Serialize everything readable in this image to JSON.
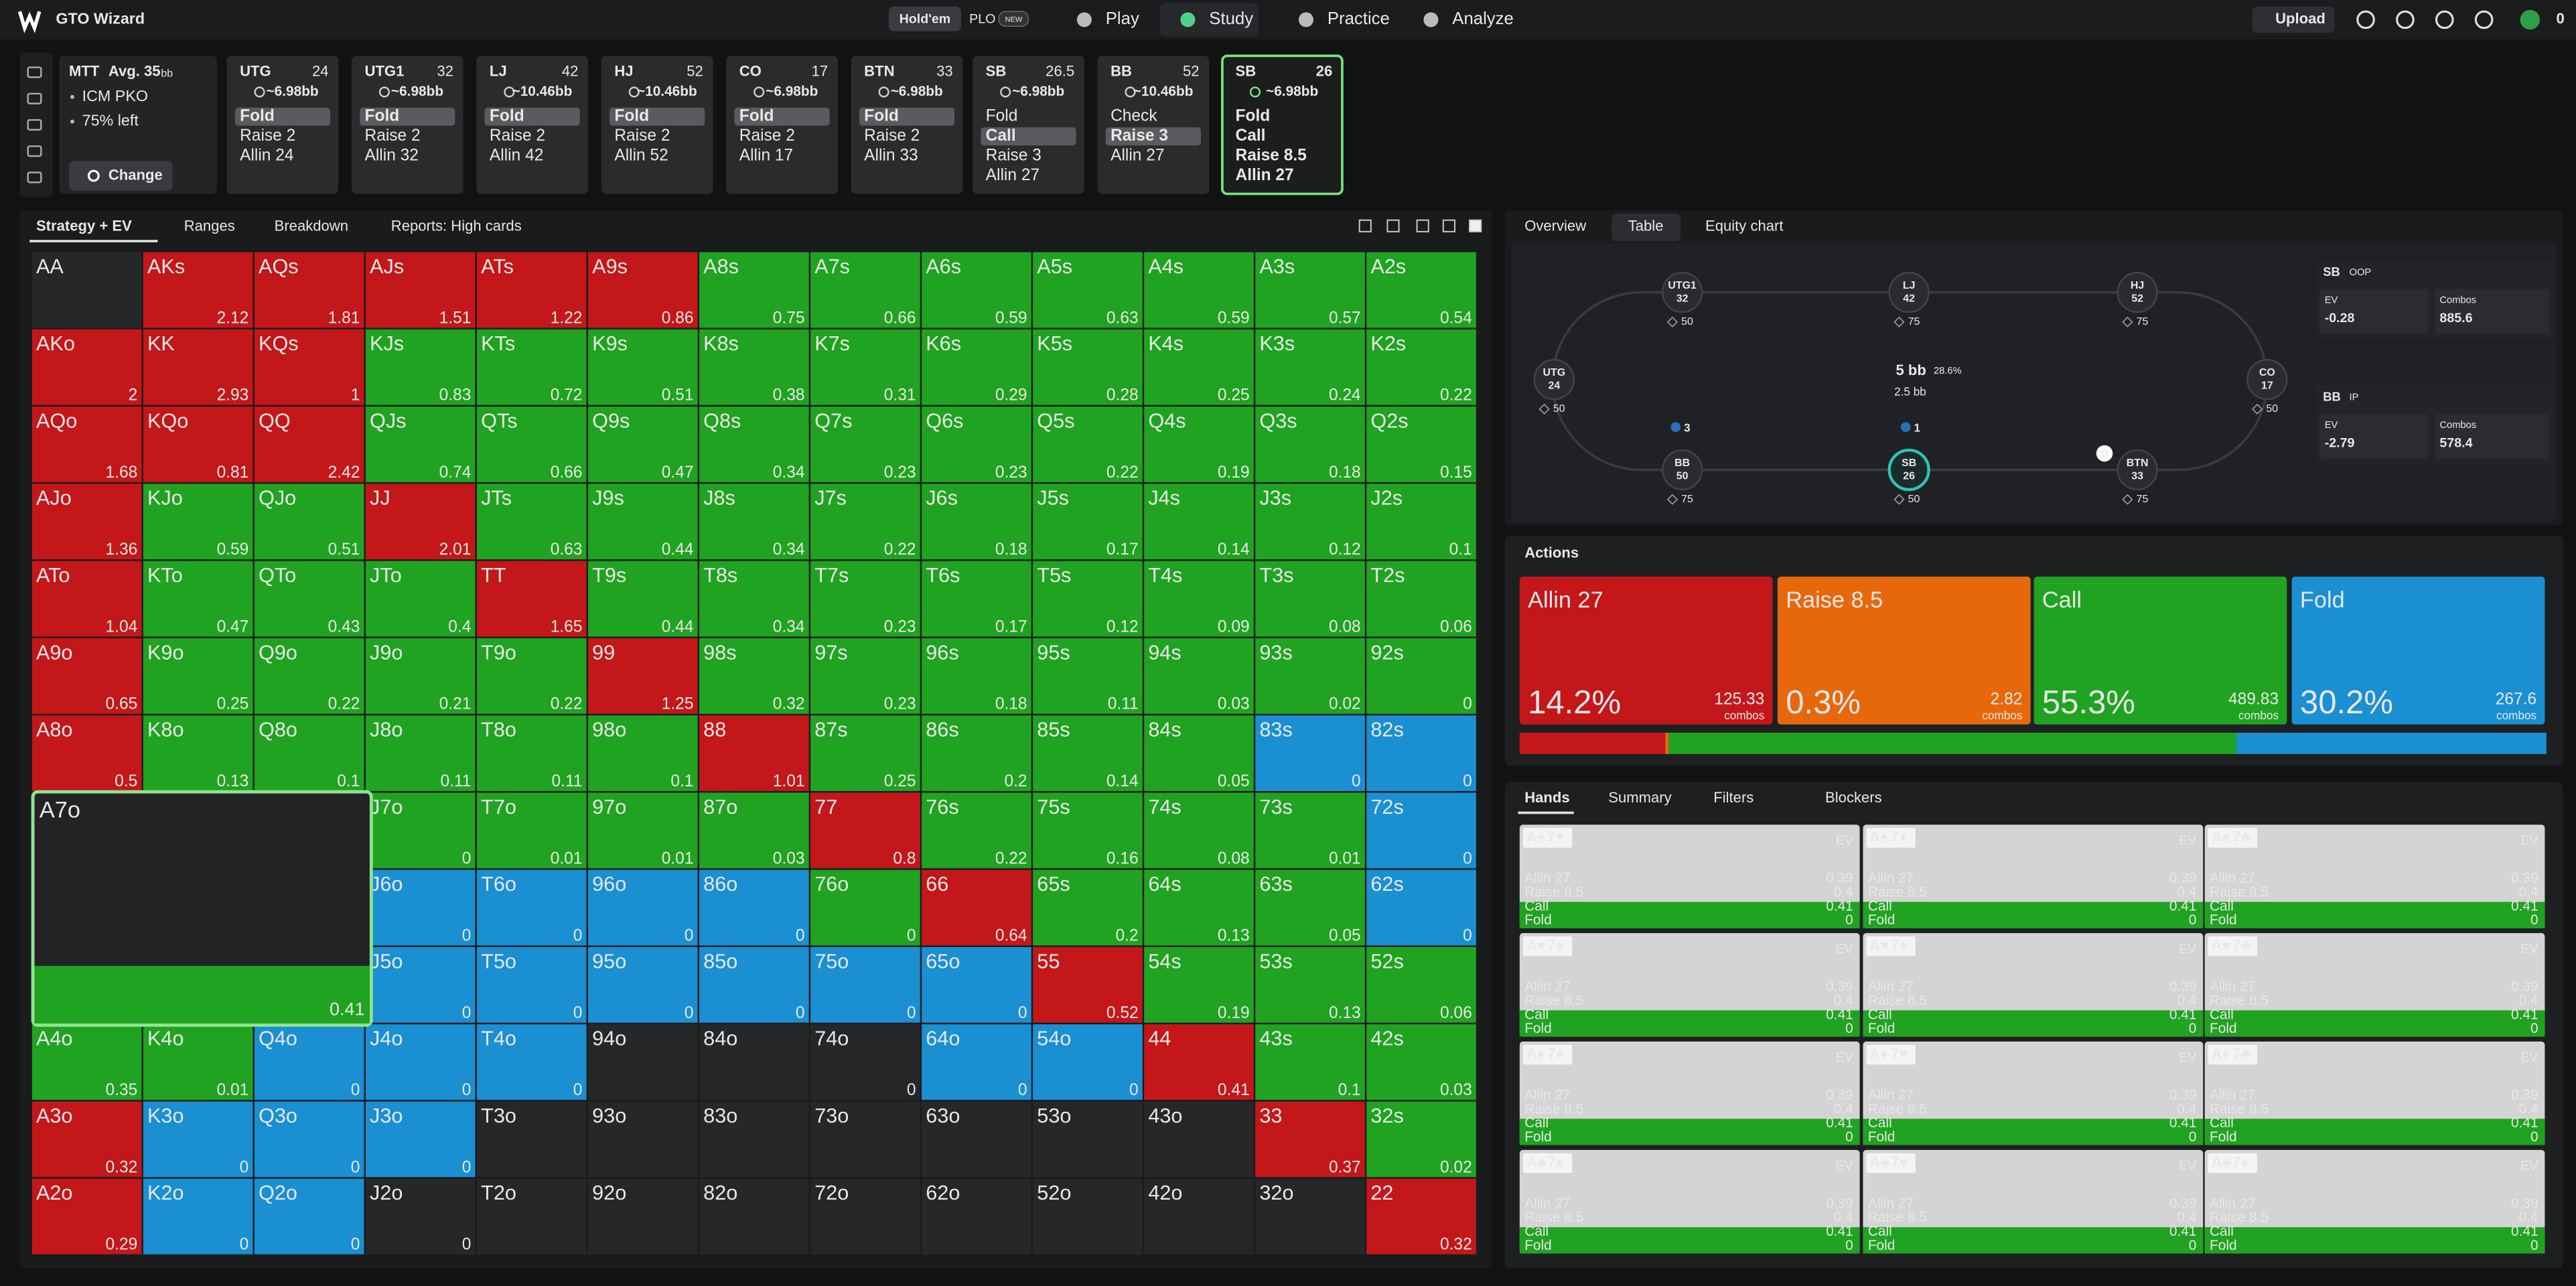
{
  "topbar": {
    "brand": "GTO Wizard",
    "modes": [
      "Hold'em",
      "PLO"
    ],
    "badge": "NEW",
    "nav": [
      "Play",
      "Study",
      "Practice",
      "Analyze"
    ],
    "upload": "Upload",
    "balance": "0"
  },
  "spot": {
    "format": "MTT",
    "avg": "Avg. 35",
    "avg_unit": "bb",
    "tags": [
      "ICM PKO",
      "75% left"
    ],
    "button": "Change"
  },
  "positions": [
    {
      "name": "UTG",
      "stack": 24,
      "pot": "~6.98bb",
      "actions": [
        "Fold",
        "Raise 2",
        "Allin 24"
      ],
      "selected": 0
    },
    {
      "name": "UTG1",
      "stack": 32,
      "pot": "~6.98bb",
      "actions": [
        "Fold",
        "Raise 2",
        "Allin 32"
      ],
      "selected": 0
    },
    {
      "name": "LJ",
      "stack": 42,
      "pot": "~10.46bb",
      "actions": [
        "Fold",
        "Raise 2",
        "Allin 42"
      ],
      "selected": 0
    },
    {
      "name": "HJ",
      "stack": 52,
      "pot": "~10.46bb",
      "actions": [
        "Fold",
        "Raise 2",
        "Allin 52"
      ],
      "selected": 0
    },
    {
      "name": "CO",
      "stack": 17,
      "pot": "~6.98bb",
      "actions": [
        "Fold",
        "Raise 2",
        "Allin 17"
      ],
      "selected": 0
    },
    {
      "name": "BTN",
      "stack": 33,
      "pot": "~6.98bb",
      "actions": [
        "Fold",
        "Raise 2",
        "Allin 33"
      ],
      "selected": 0
    },
    {
      "name": "SB",
      "stack": 26.5,
      "pot": "~6.98bb",
      "actions": [
        "Fold",
        "Call",
        "Raise 3",
        "Allin 27"
      ],
      "selected": 1
    },
    {
      "name": "BB",
      "stack": 52,
      "pot": "~10.46bb",
      "actions": [
        "Check",
        "Raise 3",
        "Allin 27"
      ],
      "selected": 1
    },
    {
      "name": "SB",
      "stack": 26,
      "pot": "~6.98bb",
      "actions": [
        "Fold",
        "Call",
        "Raise 8.5",
        "Allin 27"
      ],
      "selected": null,
      "active": true
    }
  ],
  "left_tabs": [
    "Strategy + EV",
    "Ranges",
    "Breakdown",
    "Reports: High cards"
  ],
  "right_tabs": [
    "Overview",
    "Table",
    "Equity chart"
  ],
  "grid": {
    "colors": {
      "A": "#c3171a",
      "R": "#e7680b",
      "C": "#20a320",
      "F": "#1a8fd2"
    },
    "rows": [
      {
        "hands": [
          "AA",
          "AKs",
          "AQs",
          "AJs",
          "ATs",
          "A9s",
          "A8s",
          "A7s",
          "A6s",
          "A5s",
          "A4s",
          "A3s",
          "A2s"
        ],
        "ev": [
          null,
          2.12,
          1.81,
          1.51,
          1.22,
          0.86,
          0.75,
          0.66,
          0.59,
          0.63,
          0.59,
          0.57,
          0.54
        ],
        "action": "NAAAAACCCCCCC"
      },
      {
        "hands": [
          "AKo",
          "KK",
          "KQs",
          "KJs",
          "KTs",
          "K9s",
          "K8s",
          "K7s",
          "K6s",
          "K5s",
          "K4s",
          "K3s",
          "K2s"
        ],
        "ev": [
          2,
          2.93,
          1,
          0.83,
          0.72,
          0.51,
          0.38,
          0.31,
          0.29,
          0.28,
          0.25,
          0.24,
          0.22
        ],
        "action": "AAACCCCCCCCCC"
      },
      {
        "hands": [
          "AQo",
          "KQo",
          "QQ",
          "QJs",
          "QTs",
          "Q9s",
          "Q8s",
          "Q7s",
          "Q6s",
          "Q5s",
          "Q4s",
          "Q3s",
          "Q2s"
        ],
        "ev": [
          1.68,
          0.81,
          2.42,
          0.74,
          0.66,
          0.47,
          0.34,
          0.23,
          0.23,
          0.22,
          0.19,
          0.18,
          0.15
        ],
        "action": "AAACCCCCCCCCC"
      },
      {
        "hands": [
          "AJo",
          "KJo",
          "QJo",
          "JJ",
          "JTs",
          "J9s",
          "J8s",
          "J7s",
          "J6s",
          "J5s",
          "J4s",
          "J3s",
          "J2s"
        ],
        "ev": [
          1.36,
          0.59,
          0.51,
          2.01,
          0.63,
          0.44,
          0.34,
          0.22,
          0.18,
          0.17,
          0.14,
          0.12,
          0.1
        ],
        "action": "ACCACCCCCCCCC"
      },
      {
        "hands": [
          "ATo",
          "KTo",
          "QTo",
          "JTo",
          "TT",
          "T9s",
          "T8s",
          "T7s",
          "T6s",
          "T5s",
          "T4s",
          "T3s",
          "T2s"
        ],
        "ev": [
          1.04,
          0.47,
          0.43,
          0.4,
          1.65,
          0.44,
          0.34,
          0.23,
          0.17,
          0.12,
          0.09,
          0.08,
          0.06
        ],
        "action": "ACCCACCCCCCCC"
      },
      {
        "hands": [
          "A9o",
          "K9o",
          "Q9o",
          "J9o",
          "T9o",
          "99",
          "98s",
          "97s",
          "96s",
          "95s",
          "94s",
          "93s",
          "92s"
        ],
        "ev": [
          0.65,
          0.25,
          0.22,
          0.21,
          0.22,
          1.25,
          0.32,
          0.23,
          0.18,
          0.11,
          0.03,
          0.02,
          0
        ],
        "action": "ACCCCACCCCCCC"
      },
      {
        "hands": [
          "A8o",
          "K8o",
          "Q8o",
          "J8o",
          "T8o",
          "98o",
          "88",
          "87s",
          "86s",
          "85s",
          "84s",
          "83s",
          "82s"
        ],
        "ev": [
          0.5,
          0.13,
          0.1,
          0.11,
          0.11,
          0.1,
          1.01,
          0.25,
          0.2,
          0.14,
          0.05,
          0,
          0
        ],
        "action": "ACCCCCACCCCFF"
      },
      {
        "hands": [
          null,
          null,
          null,
          "J7o",
          "T7o",
          "97o",
          "87o",
          "77",
          "76s",
          "75s",
          "74s",
          "73s",
          "72s"
        ],
        "ev": [
          null,
          null,
          null,
          0,
          0.01,
          0.01,
          0.03,
          0.8,
          0.22,
          0.16,
          0.08,
          0.01,
          0
        ],
        "action": "NNNCCCCACCCCF"
      },
      {
        "hands": [
          null,
          null,
          null,
          "J6o",
          "T6o",
          "96o",
          "86o",
          "76o",
          "66",
          "65s",
          "64s",
          "63s",
          "62s"
        ],
        "ev": [
          null,
          null,
          null,
          0,
          0,
          0,
          0,
          0,
          0.64,
          0.2,
          0.13,
          0.05,
          0
        ],
        "action": "NNNFFFFCACCCF"
      },
      {
        "hands": [
          null,
          null,
          null,
          "J5o",
          "T5o",
          "95o",
          "85o",
          "75o",
          "65o",
          "55",
          "54s",
          "53s",
          "52s"
        ],
        "ev": [
          null,
          null,
          null,
          0,
          0,
          0,
          0,
          0,
          0,
          0.52,
          0.19,
          0.13,
          0.06
        ],
        "action": "NNNFFFFFFACCC"
      },
      {
        "hands": [
          "A4o",
          "K4o",
          "Q4o",
          "J4o",
          "T4o",
          "94o",
          "84o",
          "74o",
          "64o",
          "54o",
          "44",
          "43s",
          "42s"
        ],
        "ev": [
          0.35,
          0.01,
          0,
          0,
          0,
          null,
          null,
          0,
          0,
          0,
          0.41,
          0.1,
          0.03
        ],
        "action": "CCFFFNNNFFACC"
      },
      {
        "hands": [
          "A3o",
          "K3o",
          "Q3o",
          "J3o",
          "T3o",
          "93o",
          "83o",
          "73o",
          "63o",
          "53o",
          "43o",
          "33",
          "32s"
        ],
        "ev": [
          0.32,
          0,
          0,
          0,
          null,
          null,
          null,
          null,
          null,
          null,
          null,
          0.37,
          0.02
        ],
        "action": "AFFFNNNNNNNAC"
      },
      {
        "hands": [
          "A2o",
          "K2o",
          "Q2o",
          "J2o",
          "T2o",
          "92o",
          "82o",
          "72o",
          "62o",
          "52o",
          "42o",
          "32o",
          "22"
        ],
        "ev": [
          0.29,
          0,
          0,
          0,
          null,
          null,
          null,
          null,
          null,
          null,
          null,
          null,
          0.32
        ],
        "action": "AFFNNNNNNNNNA"
      }
    ],
    "selected": {
      "hand": "A7o",
      "ev": 0.41
    }
  },
  "table": {
    "seats": [
      {
        "name": "UTG1",
        "stack": 32,
        "bet": 50
      },
      {
        "name": "LJ",
        "stack": 42,
        "bet": 75
      },
      {
        "name": "HJ",
        "stack": 52,
        "bet": 75
      },
      {
        "name": "UTG",
        "stack": 24,
        "bet": 50
      },
      {
        "name": "CO",
        "stack": 17,
        "bet": 50
      },
      {
        "name": "BB",
        "stack": 50,
        "bet": 75
      },
      {
        "name": "SB",
        "stack": 26,
        "bet": 50,
        "active": true
      },
      {
        "name": "BTN",
        "stack": 33,
        "bet": 75
      }
    ],
    "pot": "5 bb",
    "pot_pct": "28.6%",
    "to_call": "2.5 bb",
    "chips": [
      3,
      1
    ],
    "dealer": "D",
    "players": [
      {
        "name": "SB",
        "role": "OOP",
        "ev_label": "EV",
        "ev": "-0.28",
        "combos_label": "Combos",
        "combos": "885.6"
      },
      {
        "name": "BB",
        "role": "IP",
        "ev_label": "EV",
        "ev": "-2.79",
        "combos_label": "Combos",
        "combos": "578.4"
      }
    ]
  },
  "actions": {
    "title": "Actions",
    "combos_label": "combos",
    "items": [
      {
        "name": "Allin 27",
        "color": "#c3171a",
        "pct": {
          "value": 14.2,
          "label": "14.2%"
        },
        "combos": 125.33
      },
      {
        "name": "Raise 8.5",
        "color": "#e7680b",
        "pct": {
          "value": 0.3,
          "label": "0.3%"
        },
        "combos": 2.82
      },
      {
        "name": "Call",
        "color": "#20a320",
        "pct": {
          "value": 55.3,
          "label": "55.3%"
        },
        "combos": 489.83
      },
      {
        "name": "Fold",
        "color": "#1a8fd2",
        "pct": {
          "value": 30.2,
          "label": "30.2%"
        },
        "combos": 267.6
      }
    ]
  },
  "hands_panel": {
    "tabs": [
      "Hands",
      "Summary",
      "Filters",
      "Blockers"
    ],
    "ev_header": "EV",
    "suit_colors": {
      "♠": "#111111",
      "♥": "#c8102e",
      "♦": "#1d4fd6",
      "♣": "#1f8f1f"
    },
    "rows": [
      {
        "label": "Allin 27",
        "ev": 0.39
      },
      {
        "label": "Raise 8.5",
        "ev": 0.4
      },
      {
        "label": "Call",
        "ev": 0.41
      },
      {
        "label": "Fold",
        "ev": 0
      }
    ],
    "hands": [
      [
        "A♠",
        "7♥"
      ],
      [
        "A♠",
        "7♦"
      ],
      [
        "A♠",
        "7♣"
      ],
      [
        "A♥",
        "7♠"
      ],
      [
        "A♥",
        "7♦"
      ],
      [
        "A♥",
        "7♣"
      ],
      [
        "A♦",
        "7♠"
      ],
      [
        "A♦",
        "7♥"
      ],
      [
        "A♦",
        "7♣"
      ],
      [
        "A♣",
        "7♠"
      ],
      [
        "A♣",
        "7♥"
      ],
      [
        "A♣",
        "7♦"
      ]
    ]
  }
}
